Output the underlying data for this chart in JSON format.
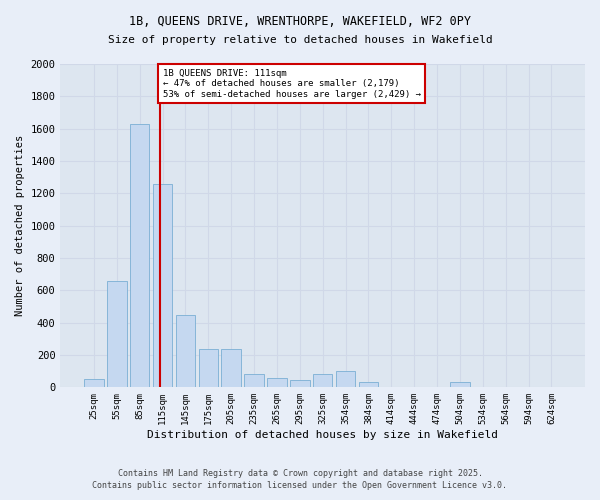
{
  "title_line1": "1B, QUEENS DRIVE, WRENTHORPE, WAKEFIELD, WF2 0PY",
  "title_line2": "Size of property relative to detached houses in Wakefield",
  "xlabel": "Distribution of detached houses by size in Wakefield",
  "ylabel": "Number of detached properties",
  "categories": [
    "25sqm",
    "55sqm",
    "85sqm",
    "115sqm",
    "145sqm",
    "175sqm",
    "205sqm",
    "235sqm",
    "265sqm",
    "295sqm",
    "325sqm",
    "354sqm",
    "384sqm",
    "414sqm",
    "444sqm",
    "474sqm",
    "504sqm",
    "534sqm",
    "564sqm",
    "594sqm",
    "624sqm"
  ],
  "values": [
    50,
    660,
    1630,
    1260,
    450,
    235,
    235,
    80,
    55,
    45,
    80,
    100,
    30,
    0,
    0,
    0,
    30,
    0,
    0,
    0,
    0
  ],
  "bar_color": "#c5d8f0",
  "bar_edge_color": "#7bafd4",
  "grid_color": "#d0d8e8",
  "background_color": "#dde6f0",
  "fig_background_color": "#e8eef8",
  "vline_color": "#cc0000",
  "annotation_text": "1B QUEENS DRIVE: 111sqm\n← 47% of detached houses are smaller (2,179)\n53% of semi-detached houses are larger (2,429) →",
  "annotation_box_color": "#cc0000",
  "ylim": [
    0,
    2000
  ],
  "yticks": [
    0,
    200,
    400,
    600,
    800,
    1000,
    1200,
    1400,
    1600,
    1800,
    2000
  ],
  "footer_line1": "Contains HM Land Registry data © Crown copyright and database right 2025.",
  "footer_line2": "Contains public sector information licensed under the Open Government Licence v3.0."
}
